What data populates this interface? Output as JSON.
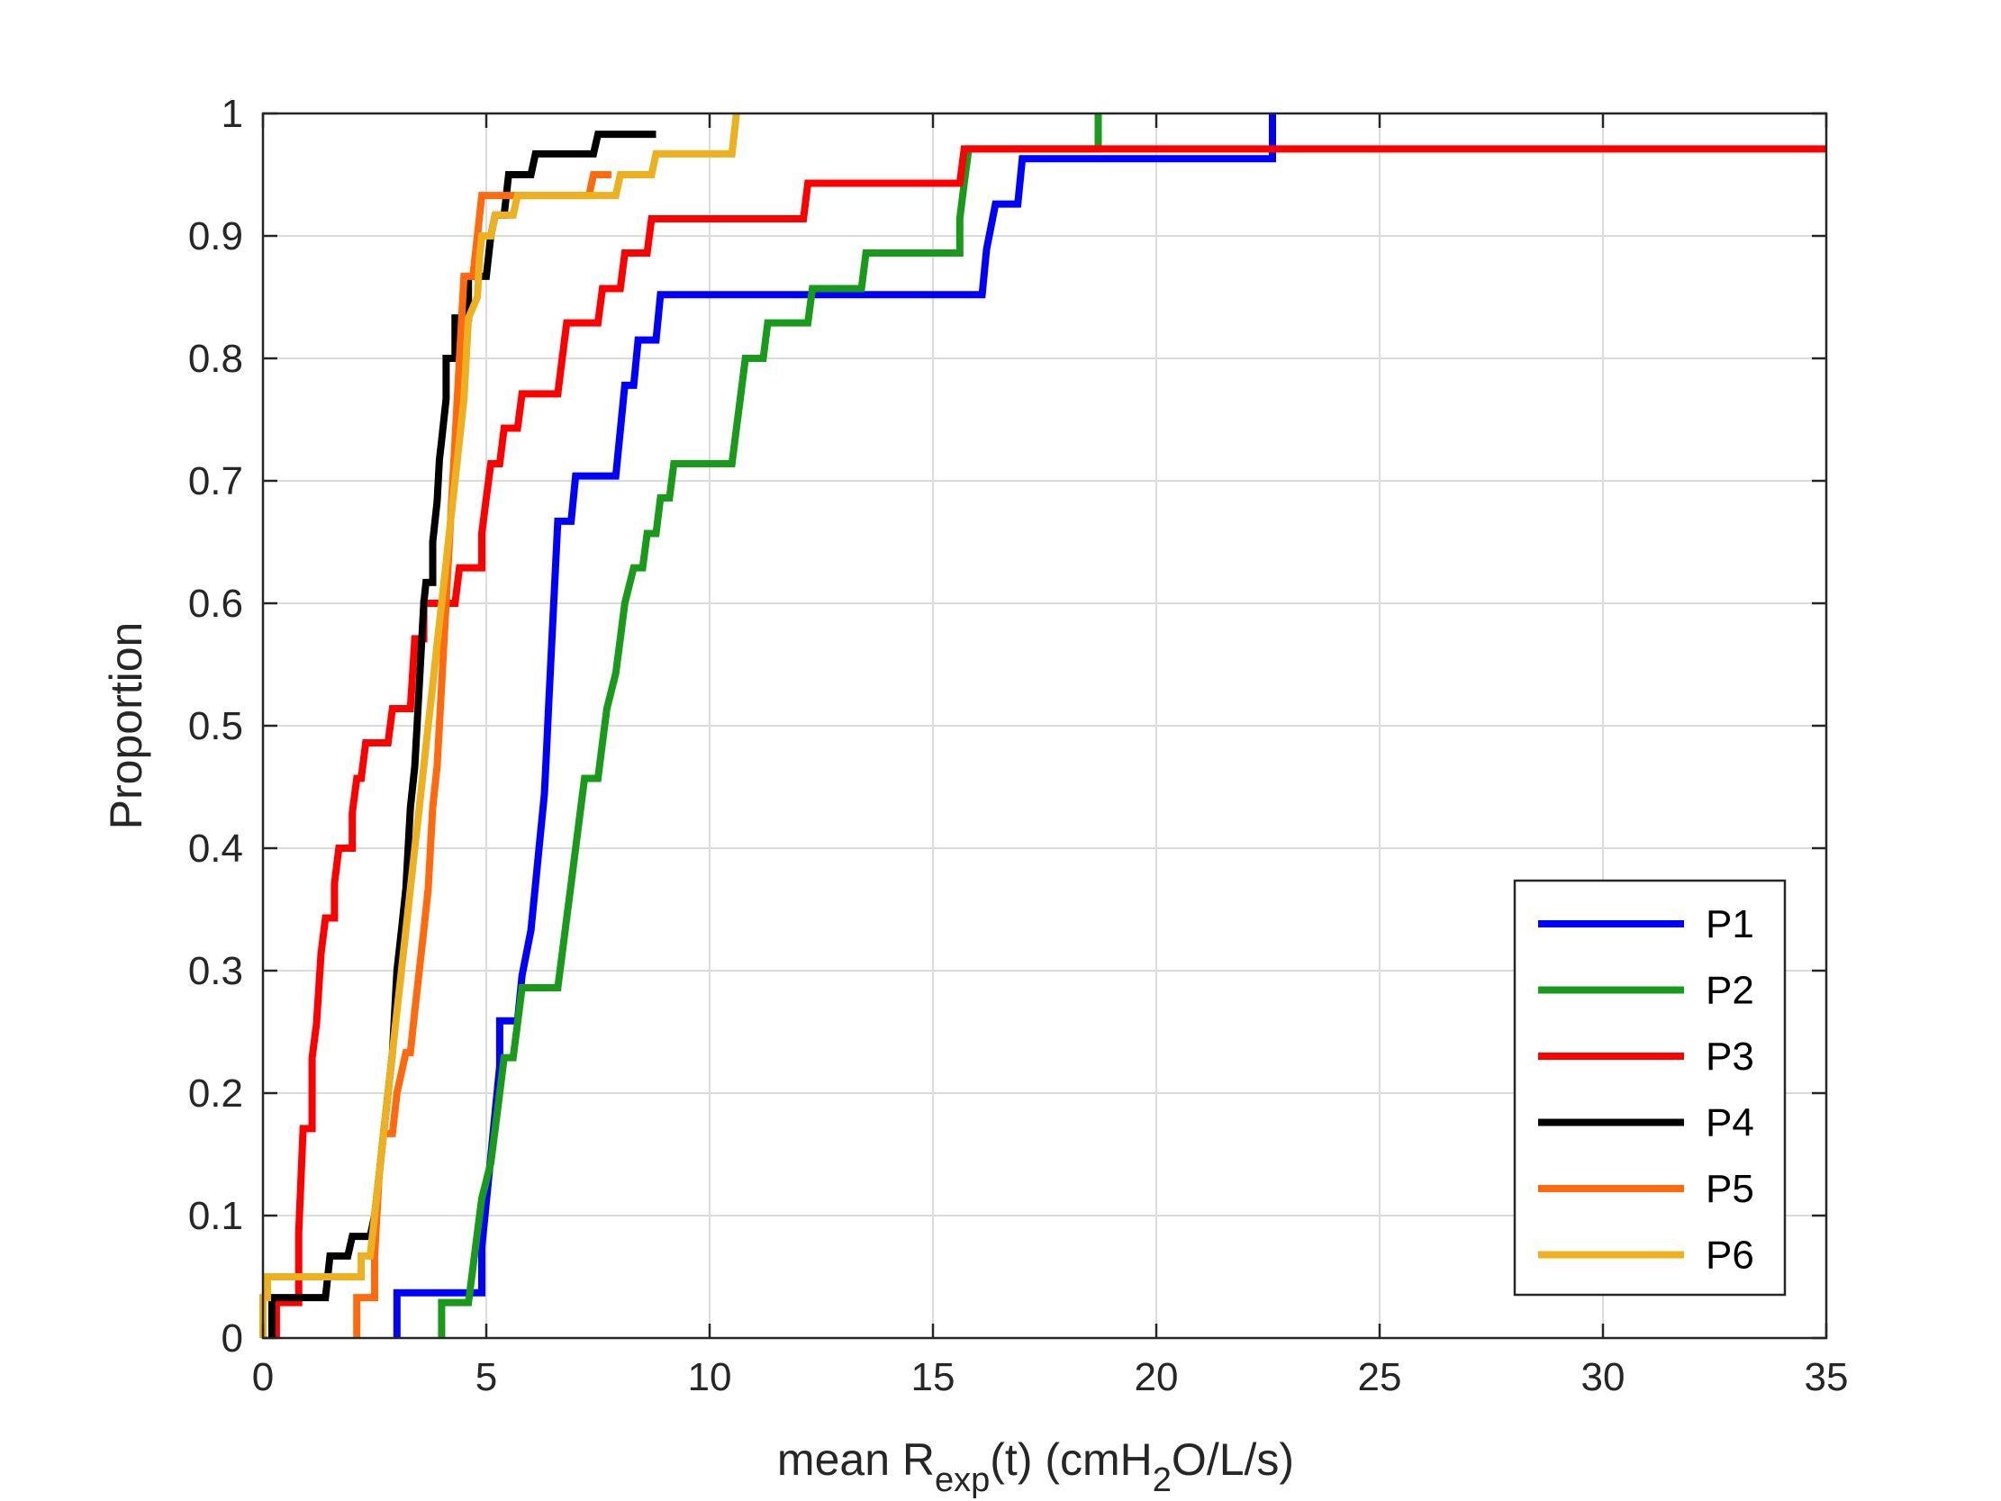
{
  "chart_data": {
    "type": "line",
    "subtype": "empirical-cdf-step",
    "xlabel": {
      "pre": "mean R",
      "sub1": "exp",
      "mid": "(t) (cmH",
      "sub2": "2",
      "post": "O/L/s)"
    },
    "ylabel": "Proportion",
    "xlim": [
      0,
      35
    ],
    "ylim": [
      0,
      1
    ],
    "xticks": [
      "0",
      "5",
      "10",
      "15",
      "20",
      "25",
      "30",
      "35"
    ],
    "yticks": [
      "0",
      "0.1",
      "0.2",
      "0.3",
      "0.4",
      "0.5",
      "0.6",
      "0.7",
      "0.8",
      "0.9",
      "1"
    ],
    "grid": true,
    "legend_position": "bottom-right",
    "series": [
      {
        "name": "P1",
        "color": "#0000ff",
        "points": [
          [
            3.0,
            0
          ],
          [
            3.0,
            0.037
          ],
          [
            4.9,
            0.037
          ],
          [
            4.9,
            0.074
          ],
          [
            5.0,
            0.111
          ],
          [
            5.1,
            0.148
          ],
          [
            5.2,
            0.185
          ],
          [
            5.3,
            0.222
          ],
          [
            5.3,
            0.259
          ],
          [
            5.7,
            0.259
          ],
          [
            5.8,
            0.296
          ],
          [
            6.0,
            0.333
          ],
          [
            6.1,
            0.37
          ],
          [
            6.2,
            0.407
          ],
          [
            6.3,
            0.444
          ],
          [
            6.35,
            0.481
          ],
          [
            6.4,
            0.519
          ],
          [
            6.45,
            0.556
          ],
          [
            6.5,
            0.593
          ],
          [
            6.55,
            0.63
          ],
          [
            6.6,
            0.667
          ],
          [
            6.9,
            0.667
          ],
          [
            7.0,
            0.704
          ],
          [
            7.9,
            0.704
          ],
          [
            8.0,
            0.741
          ],
          [
            8.1,
            0.778
          ],
          [
            8.3,
            0.778
          ],
          [
            8.4,
            0.815
          ],
          [
            8.8,
            0.815
          ],
          [
            8.9,
            0.852
          ],
          [
            16.1,
            0.852
          ],
          [
            16.2,
            0.889
          ],
          [
            16.4,
            0.926
          ],
          [
            16.9,
            0.926
          ],
          [
            17.0,
            0.963
          ],
          [
            22.6,
            0.963
          ],
          [
            22.6,
            1.0
          ]
        ]
      },
      {
        "name": "P2",
        "color": "#1a9a1a",
        "points": [
          [
            4.0,
            0
          ],
          [
            4.0,
            0.029
          ],
          [
            4.6,
            0.029
          ],
          [
            4.7,
            0.057
          ],
          [
            4.8,
            0.086
          ],
          [
            4.9,
            0.114
          ],
          [
            5.1,
            0.143
          ],
          [
            5.2,
            0.171
          ],
          [
            5.3,
            0.2
          ],
          [
            5.4,
            0.229
          ],
          [
            5.6,
            0.229
          ],
          [
            5.7,
            0.257
          ],
          [
            5.8,
            0.286
          ],
          [
            6.6,
            0.286
          ],
          [
            6.7,
            0.314
          ],
          [
            6.8,
            0.343
          ],
          [
            6.9,
            0.371
          ],
          [
            7.0,
            0.4
          ],
          [
            7.1,
            0.429
          ],
          [
            7.2,
            0.457
          ],
          [
            7.5,
            0.457
          ],
          [
            7.6,
            0.486
          ],
          [
            7.7,
            0.514
          ],
          [
            7.9,
            0.543
          ],
          [
            8.0,
            0.571
          ],
          [
            8.1,
            0.6
          ],
          [
            8.3,
            0.629
          ],
          [
            8.5,
            0.629
          ],
          [
            8.6,
            0.657
          ],
          [
            8.8,
            0.657
          ],
          [
            8.9,
            0.686
          ],
          [
            9.1,
            0.686
          ],
          [
            9.2,
            0.714
          ],
          [
            10.5,
            0.714
          ],
          [
            10.6,
            0.743
          ],
          [
            10.7,
            0.771
          ],
          [
            10.8,
            0.8
          ],
          [
            11.2,
            0.8
          ],
          [
            11.3,
            0.829
          ],
          [
            12.2,
            0.829
          ],
          [
            12.3,
            0.857
          ],
          [
            13.4,
            0.857
          ],
          [
            13.5,
            0.886
          ],
          [
            15.6,
            0.886
          ],
          [
            15.6,
            0.914
          ],
          [
            15.7,
            0.943
          ],
          [
            15.8,
            0.971
          ],
          [
            18.7,
            0.971
          ],
          [
            18.7,
            1.0
          ]
        ]
      },
      {
        "name": "P3",
        "color": "#ff0000",
        "points": [
          [
            0.3,
            0
          ],
          [
            0.3,
            0.029
          ],
          [
            0.8,
            0.029
          ],
          [
            0.8,
            0.086
          ],
          [
            0.9,
            0.171
          ],
          [
            1.1,
            0.171
          ],
          [
            1.1,
            0.229
          ],
          [
            1.2,
            0.257
          ],
          [
            1.3,
            0.314
          ],
          [
            1.4,
            0.343
          ],
          [
            1.6,
            0.343
          ],
          [
            1.6,
            0.371
          ],
          [
            1.7,
            0.4
          ],
          [
            2.0,
            0.4
          ],
          [
            2.0,
            0.429
          ],
          [
            2.1,
            0.457
          ],
          [
            2.2,
            0.457
          ],
          [
            2.3,
            0.486
          ],
          [
            2.8,
            0.486
          ],
          [
            2.9,
            0.514
          ],
          [
            3.3,
            0.514
          ],
          [
            3.4,
            0.571
          ],
          [
            3.6,
            0.571
          ],
          [
            3.6,
            0.6
          ],
          [
            4.3,
            0.6
          ],
          [
            4.4,
            0.629
          ],
          [
            4.9,
            0.629
          ],
          [
            4.9,
            0.657
          ],
          [
            5.0,
            0.686
          ],
          [
            5.1,
            0.714
          ],
          [
            5.3,
            0.714
          ],
          [
            5.4,
            0.743
          ],
          [
            5.7,
            0.743
          ],
          [
            5.8,
            0.771
          ],
          [
            6.6,
            0.771
          ],
          [
            6.7,
            0.8
          ],
          [
            6.8,
            0.829
          ],
          [
            7.5,
            0.829
          ],
          [
            7.6,
            0.857
          ],
          [
            8.0,
            0.857
          ],
          [
            8.1,
            0.886
          ],
          [
            8.6,
            0.886
          ],
          [
            8.7,
            0.914
          ],
          [
            12.1,
            0.914
          ],
          [
            12.2,
            0.943
          ],
          [
            15.6,
            0.943
          ],
          [
            15.7,
            0.971
          ],
          [
            35,
            0.971
          ]
        ]
      },
      {
        "name": "P4",
        "color": "#000000",
        "points": [
          [
            0.2,
            0
          ],
          [
            0.2,
            0.033
          ],
          [
            1.4,
            0.033
          ],
          [
            1.5,
            0.067
          ],
          [
            1.9,
            0.067
          ],
          [
            2.0,
            0.083
          ],
          [
            2.4,
            0.083
          ],
          [
            2.5,
            0.1
          ],
          [
            2.6,
            0.133
          ],
          [
            2.7,
            0.167
          ],
          [
            2.8,
            0.2
          ],
          [
            2.9,
            0.233
          ],
          [
            2.95,
            0.267
          ],
          [
            3.0,
            0.3
          ],
          [
            3.1,
            0.333
          ],
          [
            3.2,
            0.367
          ],
          [
            3.25,
            0.4
          ],
          [
            3.3,
            0.433
          ],
          [
            3.4,
            0.467
          ],
          [
            3.45,
            0.5
          ],
          [
            3.5,
            0.533
          ],
          [
            3.55,
            0.567
          ],
          [
            3.6,
            0.6
          ],
          [
            3.65,
            0.617
          ],
          [
            3.8,
            0.617
          ],
          [
            3.8,
            0.65
          ],
          [
            3.9,
            0.683
          ],
          [
            3.95,
            0.717
          ],
          [
            4.0,
            0.733
          ],
          [
            4.1,
            0.767
          ],
          [
            4.1,
            0.8
          ],
          [
            4.3,
            0.8
          ],
          [
            4.3,
            0.833
          ],
          [
            4.6,
            0.833
          ],
          [
            4.6,
            0.867
          ],
          [
            5.0,
            0.867
          ],
          [
            5.1,
            0.9
          ],
          [
            5.2,
            0.917
          ],
          [
            5.4,
            0.917
          ],
          [
            5.5,
            0.95
          ],
          [
            6.0,
            0.95
          ],
          [
            6.1,
            0.967
          ],
          [
            7.4,
            0.967
          ],
          [
            7.5,
            0.983
          ],
          [
            8.8,
            0.983
          ]
        ]
      },
      {
        "name": "P5",
        "color": "#ff6a0f",
        "points": [
          [
            2.1,
            0
          ],
          [
            2.1,
            0.033
          ],
          [
            2.5,
            0.033
          ],
          [
            2.5,
            0.067
          ],
          [
            2.55,
            0.1
          ],
          [
            2.6,
            0.133
          ],
          [
            2.7,
            0.167
          ],
          [
            2.9,
            0.167
          ],
          [
            3.0,
            0.2
          ],
          [
            3.2,
            0.233
          ],
          [
            3.3,
            0.233
          ],
          [
            3.4,
            0.267
          ],
          [
            3.5,
            0.3
          ],
          [
            3.6,
            0.333
          ],
          [
            3.7,
            0.367
          ],
          [
            3.75,
            0.4
          ],
          [
            3.8,
            0.433
          ],
          [
            3.9,
            0.467
          ],
          [
            3.95,
            0.5
          ],
          [
            4.0,
            0.533
          ],
          [
            4.05,
            0.567
          ],
          [
            4.1,
            0.6
          ],
          [
            4.15,
            0.633
          ],
          [
            4.2,
            0.667
          ],
          [
            4.25,
            0.7
          ],
          [
            4.3,
            0.733
          ],
          [
            4.35,
            0.767
          ],
          [
            4.4,
            0.8
          ],
          [
            4.45,
            0.833
          ],
          [
            4.5,
            0.867
          ],
          [
            4.7,
            0.867
          ],
          [
            4.8,
            0.9
          ],
          [
            4.9,
            0.933
          ],
          [
            7.3,
            0.933
          ],
          [
            7.4,
            0.95
          ],
          [
            7.8,
            0.95
          ]
        ]
      },
      {
        "name": "P6",
        "color": "#edb120",
        "points": [
          [
            0.0,
            0
          ],
          [
            0.0,
            0.033
          ],
          [
            0.1,
            0.033
          ],
          [
            0.1,
            0.05
          ],
          [
            2.2,
            0.05
          ],
          [
            2.2,
            0.067
          ],
          [
            2.4,
            0.067
          ],
          [
            2.5,
            0.1
          ],
          [
            2.6,
            0.133
          ],
          [
            2.7,
            0.167
          ],
          [
            2.8,
            0.2
          ],
          [
            2.9,
            0.233
          ],
          [
            3.0,
            0.267
          ],
          [
            3.1,
            0.3
          ],
          [
            3.2,
            0.333
          ],
          [
            3.3,
            0.367
          ],
          [
            3.4,
            0.4
          ],
          [
            3.5,
            0.433
          ],
          [
            3.6,
            0.467
          ],
          [
            3.7,
            0.5
          ],
          [
            3.8,
            0.533
          ],
          [
            3.9,
            0.567
          ],
          [
            4.0,
            0.6
          ],
          [
            4.1,
            0.633
          ],
          [
            4.2,
            0.667
          ],
          [
            4.3,
            0.7
          ],
          [
            4.4,
            0.733
          ],
          [
            4.5,
            0.767
          ],
          [
            4.55,
            0.8
          ],
          [
            4.6,
            0.833
          ],
          [
            4.8,
            0.85
          ],
          [
            4.85,
            0.883
          ],
          [
            4.9,
            0.9
          ],
          [
            5.1,
            0.9
          ],
          [
            5.2,
            0.917
          ],
          [
            5.6,
            0.917
          ],
          [
            5.7,
            0.933
          ],
          [
            7.9,
            0.933
          ],
          [
            8.0,
            0.95
          ],
          [
            8.7,
            0.95
          ],
          [
            8.8,
            0.967
          ],
          [
            10.5,
            0.967
          ],
          [
            10.6,
            1.0
          ]
        ]
      }
    ]
  }
}
